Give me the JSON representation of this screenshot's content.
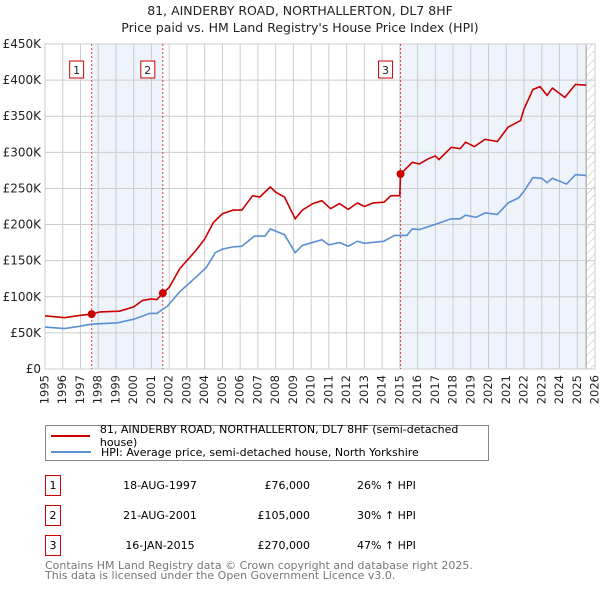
{
  "chart_data": {
    "type": "line",
    "title": "81, AINDERBY ROAD, NORTHALLERTON, DL7 8HF",
    "subtitle": "Price paid vs. HM Land Registry's House Price Index (HPI)",
    "xlim": [
      1995,
      2026
    ],
    "ylim": [
      0,
      450000
    ],
    "y_ticks": [
      {
        "value": 0,
        "label": "£0"
      },
      {
        "value": 50000,
        "label": "£50K"
      },
      {
        "value": 100000,
        "label": "£100K"
      },
      {
        "value": 150000,
        "label": "£150K"
      },
      {
        "value": 200000,
        "label": "£200K"
      },
      {
        "value": 250000,
        "label": "£250K"
      },
      {
        "value": 300000,
        "label": "£300K"
      },
      {
        "value": 350000,
        "label": "£350K"
      },
      {
        "value": 400000,
        "label": "£400K"
      },
      {
        "value": 450000,
        "label": "£450K"
      }
    ],
    "x_ticks": [
      "1995",
      "1996",
      "1997",
      "1998",
      "1999",
      "2000",
      "2001",
      "2002",
      "2003",
      "2004",
      "2005",
      "2006",
      "2007",
      "2008",
      "2009",
      "2010",
      "2011",
      "2012",
      "2013",
      "2014",
      "2015",
      "2016",
      "2017",
      "2018",
      "2019",
      "2020",
      "2021",
      "2022",
      "2023",
      "2024",
      "2025",
      "2026"
    ],
    "grid": true,
    "shaded_ranges": [
      [
        1997.63,
        2001.64
      ],
      [
        2015.04,
        2025.5
      ]
    ],
    "future_hatch_from": 2025.5,
    "series": [
      {
        "name": "81, AINDERBY ROAD, NORTHALLERTON, DL7 8HF (semi-detached house)",
        "color": "#cc0000",
        "points": [
          [
            1995,
            73.6
          ],
          [
            1996.1,
            71
          ],
          [
            1996.9,
            74
          ],
          [
            1997.63,
            76
          ],
          [
            1998.1,
            79
          ],
          [
            1999.2,
            80
          ],
          [
            2000,
            86
          ],
          [
            2000.5,
            95
          ],
          [
            2001,
            97
          ],
          [
            2001.3,
            96
          ],
          [
            2001.64,
            105
          ],
          [
            2002,
            113
          ],
          [
            2002.6,
            139
          ],
          [
            2003.5,
            164
          ],
          [
            2004,
            180
          ],
          [
            2004.5,
            203
          ],
          [
            2005,
            215
          ],
          [
            2005.6,
            220
          ],
          [
            2006.1,
            220
          ],
          [
            2006.7,
            240
          ],
          [
            2007.1,
            238
          ],
          [
            2007.7,
            252
          ],
          [
            2008,
            245
          ],
          [
            2008.5,
            238
          ],
          [
            2009.1,
            208
          ],
          [
            2009.5,
            220
          ],
          [
            2010.1,
            229
          ],
          [
            2010.6,
            233
          ],
          [
            2011.1,
            222
          ],
          [
            2011.6,
            229
          ],
          [
            2012.1,
            221
          ],
          [
            2012.6,
            230
          ],
          [
            2013,
            225
          ],
          [
            2013.5,
            230
          ],
          [
            2014.1,
            231
          ],
          [
            2014.5,
            240
          ],
          [
            2015.0,
            240
          ],
          [
            2015.04,
            270
          ],
          [
            2015.7,
            286
          ],
          [
            2016.1,
            284
          ],
          [
            2016.6,
            291
          ],
          [
            2017,
            295
          ],
          [
            2017.2,
            290
          ],
          [
            2017.9,
            307
          ],
          [
            2018.4,
            305
          ],
          [
            2018.7,
            314
          ],
          [
            2019.2,
            308
          ],
          [
            2019.8,
            318
          ],
          [
            2020.5,
            315
          ],
          [
            2021.1,
            335
          ],
          [
            2021.5,
            340
          ],
          [
            2021.8,
            344
          ],
          [
            2022,
            360
          ],
          [
            2022.5,
            387
          ],
          [
            2022.9,
            391
          ],
          [
            2023.3,
            379
          ],
          [
            2023.6,
            389
          ],
          [
            2024.3,
            376
          ],
          [
            2024.9,
            394
          ],
          [
            2025.5,
            393
          ]
        ]
      },
      {
        "name": "HPI: Average price, semi-detached house, North Yorkshire",
        "color": "#5b8fd4",
        "points": [
          [
            1995,
            58
          ],
          [
            1996.1,
            56
          ],
          [
            1996.9,
            59
          ],
          [
            1997.6,
            62
          ],
          [
            1999.1,
            64
          ],
          [
            2000,
            69
          ],
          [
            2000.9,
            77
          ],
          [
            2001.3,
            77
          ],
          [
            2001.9,
            87
          ],
          [
            2002.6,
            107
          ],
          [
            2003.5,
            127
          ],
          [
            2004.1,
            141
          ],
          [
            2004.6,
            161
          ],
          [
            2005,
            166
          ],
          [
            2005.6,
            169
          ],
          [
            2006.1,
            170
          ],
          [
            2006.8,
            184
          ],
          [
            2007.4,
            184
          ],
          [
            2007.7,
            194
          ],
          [
            2008.5,
            186
          ],
          [
            2009.1,
            161
          ],
          [
            2009.5,
            171
          ],
          [
            2010.6,
            179
          ],
          [
            2011,
            172
          ],
          [
            2011.6,
            175
          ],
          [
            2012.1,
            170
          ],
          [
            2012.6,
            177
          ],
          [
            2013,
            174
          ],
          [
            2014.1,
            177
          ],
          [
            2014.7,
            185
          ],
          [
            2015.4,
            185
          ],
          [
            2015.7,
            194
          ],
          [
            2016.1,
            193
          ],
          [
            2017.1,
            201
          ],
          [
            2017.9,
            208
          ],
          [
            2018.4,
            208
          ],
          [
            2018.7,
            213
          ],
          [
            2019.3,
            210
          ],
          [
            2019.8,
            216
          ],
          [
            2020.5,
            214
          ],
          [
            2021.1,
            230
          ],
          [
            2021.7,
            237
          ],
          [
            2022,
            246
          ],
          [
            2022.5,
            265
          ],
          [
            2023,
            264
          ],
          [
            2023.3,
            258
          ],
          [
            2023.6,
            264
          ],
          [
            2024.4,
            256
          ],
          [
            2024.9,
            269
          ],
          [
            2025.5,
            268
          ]
        ]
      }
    ],
    "sales": [
      {
        "num": "1",
        "x": 1997.63,
        "value": 76
      },
      {
        "num": "2",
        "x": 2001.64,
        "value": 105
      },
      {
        "num": "3",
        "x": 2015.04,
        "value": 270
      }
    ]
  },
  "legend": {
    "property": "81, AINDERBY ROAD, NORTHALLERTON, DL7 8HF (semi-detached house)",
    "hpi": "HPI: Average price, semi-detached house, North Yorkshire"
  },
  "transactions": [
    {
      "num": "1",
      "date": "18-AUG-1997",
      "price": "£76,000",
      "hpi": "26% ↑ HPI"
    },
    {
      "num": "2",
      "date": "21-AUG-2001",
      "price": "£105,000",
      "hpi": "30% ↑ HPI"
    },
    {
      "num": "3",
      "date": "16-JAN-2015",
      "price": "£270,000",
      "hpi": "47% ↑ HPI"
    }
  ],
  "footer": {
    "line1": "Contains HM Land Registry data © Crown copyright and database right 2025.",
    "line2": "This data is licensed under the Open Government Licence v3.0."
  }
}
